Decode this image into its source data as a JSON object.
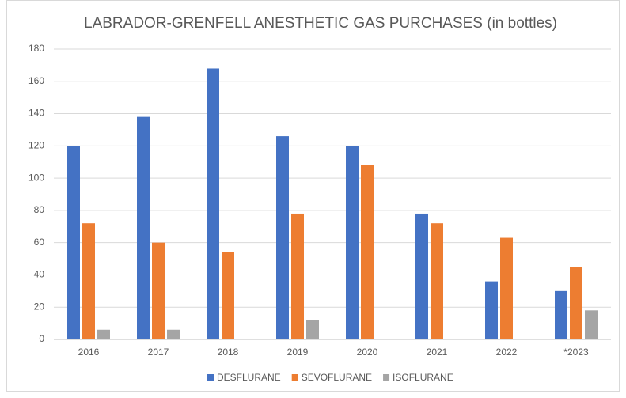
{
  "chart_data": {
    "type": "bar",
    "title": "LABRADOR-GRENFELL ANESTHETIC GAS PURCHASES (in bottles)",
    "categories": [
      "2016",
      "2017",
      "2018",
      "2019",
      "2020",
      "2021",
      "2022",
      "*2023"
    ],
    "series": [
      {
        "name": "DESFLURANE",
        "color": "#4472c4",
        "values": [
          120,
          138,
          168,
          126,
          120,
          78,
          36,
          30
        ]
      },
      {
        "name": "SEVOFLURANE",
        "color": "#ed7d31",
        "values": [
          72,
          60,
          54,
          78,
          108,
          72,
          63,
          45
        ]
      },
      {
        "name": "ISOFLURANE",
        "color": "#a5a5a5",
        "values": [
          6,
          6,
          0,
          12,
          0,
          0,
          0,
          18
        ]
      }
    ],
    "ylim": [
      0,
      180
    ],
    "yticks": [
      0,
      20,
      40,
      60,
      80,
      100,
      120,
      140,
      160,
      180
    ],
    "grid": true,
    "legend": "bottom"
  }
}
